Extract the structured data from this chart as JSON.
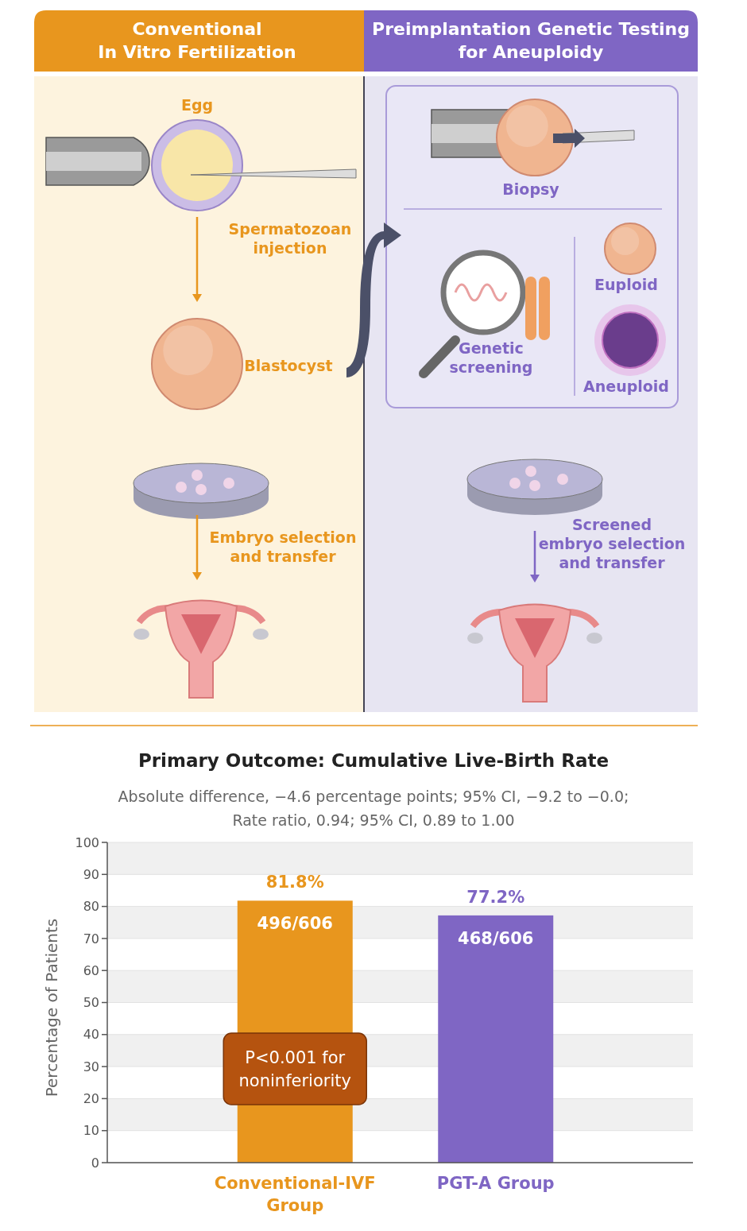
{
  "chart_data": {
    "type": "bar",
    "title": "Primary Outcome: Cumulative Live-Birth Rate",
    "subtitle": "Absolute difference, −4.6 percentage points; 95% CI, −9.2 to −0.0; Rate ratio, 0.94; 95% CI, 0.89 to 1.00",
    "ylabel": "Percentage of Patients",
    "categories": [
      "Conventional-IVF\nGroup",
      "PGT-A Group"
    ],
    "values": [
      81.8,
      77.2
    ],
    "colors": [
      "#e8961e",
      "#7f66c4"
    ],
    "value_labels": [
      "81.8%",
      "77.2%"
    ],
    "ylim": [
      0,
      100
    ],
    "yticks": [
      0,
      10,
      20,
      30,
      40,
      50,
      60,
      70,
      80,
      90,
      100
    ],
    "grid": true,
    "annotations": [
      "Conventional\nIn Vitro Fertilization",
      "Preimplantation Genetic Testing\nfor Aneuploidy",
      "Egg",
      "Spermatozoan\ninjection",
      "Blastocyst",
      "Embryo selection\nand transfer",
      "Biopsy",
      "Genetic\nscreening",
      "Euploid",
      "Aneuploid",
      "Screened\nembryo selection\nand transfer",
      {
        "text": "496/606",
        "x": "Conventional-IVF\nGroup",
        "y": 81.8
      },
      {
        "text": "468/606",
        "x": "PGT-A Group",
        "y": 77.2
      },
      "P<0.001 for\nnoninferiority"
    ]
  }
}
